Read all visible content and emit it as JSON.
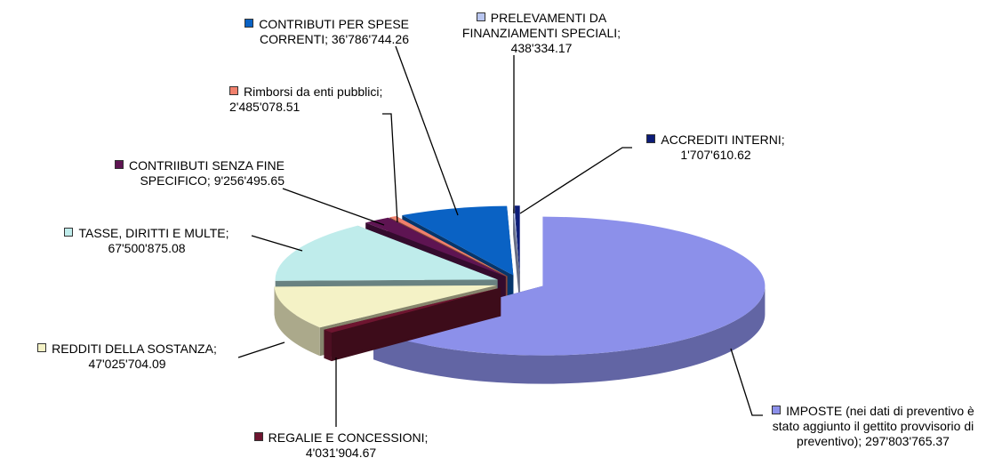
{
  "chart_data": {
    "type": "pie",
    "categories": [
      "IMPOSTE (nei dati di preventivo è stato aggiunto il gettito provvisorio di preventivo);",
      "REGALIE E CONCESSIONI;",
      "REDDITI DELLA SOSTANZA;",
      "TASSE, DIRITTI E MULTE;",
      "CONTRIIBUTI SENZA FINE SPECIFICO;",
      "Rimborsi da enti pubblici;",
      "CONTRIBUTI PER SPESE CORRENTI;",
      "PRELEVAMENTI DA FINANZIAMENTI SPECIALI;",
      "ACCREDITI INTERNI;"
    ],
    "values": [
      297803765.37,
      4031904.67,
      47025704.09,
      67500875.08,
      9256495.65,
      2485078.51,
      36786744.26,
      438334.17,
      1707610.62
    ],
    "value_labels": [
      "297'803'765.37",
      "4'031'904.67",
      "47'025'704.09",
      "67'500'875.08",
      "9'256'495.65",
      "2'485'078.51",
      "36'786'744.26",
      "438'334.17",
      "1'707'610.62"
    ],
    "colors": [
      "#8c90ea",
      "#6e1530",
      "#f4f2c6",
      "#bfeceb",
      "#5e1452",
      "#f0806c",
      "#0a62c4",
      "#b9c6f0",
      "#0c1c78"
    ]
  }
}
